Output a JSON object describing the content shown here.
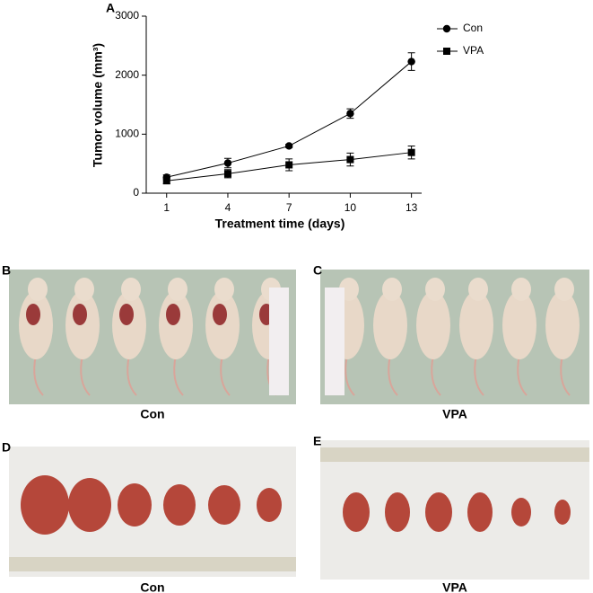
{
  "chart_data": {
    "type": "line",
    "panel_label": "A",
    "xlabel": "Treatment time (days)",
    "ylabel": "Tumor volume (mm³)",
    "x": [
      1,
      4,
      7,
      10,
      13
    ],
    "series": [
      {
        "name": "Con",
        "color": "#000000",
        "marker": "circle",
        "values": [
          270,
          510,
          800,
          1350,
          2230
        ],
        "errors": [
          40,
          80,
          30,
          80,
          150
        ]
      },
      {
        "name": "VPA",
        "color": "#000000",
        "marker": "square",
        "values": [
          210,
          330,
          480,
          570,
          690
        ],
        "errors": [
          50,
          70,
          100,
          110,
          110
        ]
      }
    ],
    "xlim": [
      0,
      13.5
    ],
    "xticks": [
      1,
      4,
      7,
      10,
      13
    ],
    "ylim": [
      0,
      3000
    ],
    "yticks": [
      0,
      1000,
      2000,
      3000
    ],
    "legend": "upper right"
  },
  "panels": [
    {
      "label": "B",
      "caption": "Con"
    },
    {
      "label": "C",
      "caption": "VPA"
    },
    {
      "label": "D",
      "caption": "Con"
    },
    {
      "label": "E",
      "caption": "VPA"
    }
  ]
}
